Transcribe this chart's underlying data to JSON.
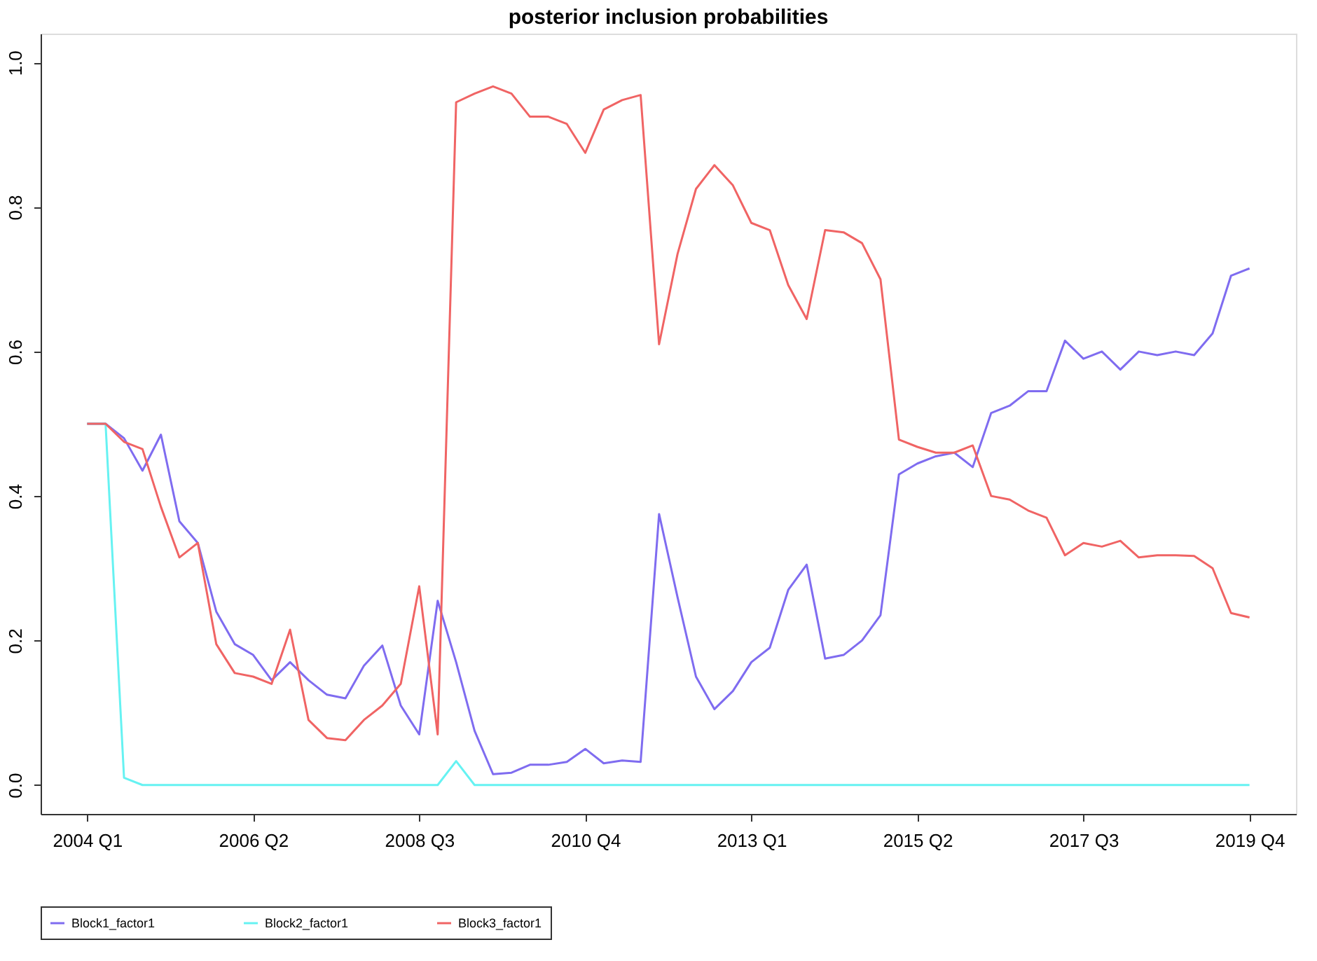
{
  "chart_data": {
    "type": "line",
    "title": "posterior inclusion probabilities",
    "categories": [
      "2004 Q1",
      null,
      null,
      null,
      null,
      null,
      null,
      null,
      null,
      "2006 Q2",
      null,
      null,
      null,
      null,
      null,
      null,
      null,
      null,
      "2008 Q3",
      null,
      null,
      null,
      null,
      null,
      null,
      null,
      null,
      "2010 Q4",
      null,
      null,
      null,
      null,
      null,
      null,
      null,
      null,
      "2013 Q1",
      null,
      null,
      null,
      null,
      null,
      null,
      null,
      null,
      "2015 Q2",
      null,
      null,
      null,
      null,
      null,
      null,
      null,
      null,
      "2017 Q3",
      null,
      null,
      null,
      null,
      null,
      null,
      null,
      null,
      "2019 Q4"
    ],
    "series": [
      {
        "name": "Block1_factor1",
        "color": "#7f6cf0",
        "values": [
          0.5,
          0.5,
          0.48,
          0.435,
          0.485,
          0.365,
          0.335,
          0.24,
          0.195,
          0.18,
          0.145,
          0.17,
          0.145,
          0.125,
          0.12,
          0.165,
          0.193,
          0.11,
          0.07,
          0.255,
          0.17,
          0.075,
          0.015,
          0.017,
          0.028,
          0.028,
          0.032,
          0.05,
          0.03,
          0.034,
          0.032,
          0.375,
          0.26,
          0.15,
          0.105,
          0.13,
          0.17,
          0.19,
          0.27,
          0.305,
          0.175,
          0.18,
          0.2,
          0.235,
          0.43,
          0.445,
          0.455,
          0.46,
          0.44,
          0.515,
          0.525,
          0.545,
          0.545,
          0.615,
          0.59,
          0.6,
          0.575,
          0.6,
          0.595,
          0.6,
          0.595,
          0.625,
          0.705,
          0.715
        ]
      },
      {
        "name": "Block2_factor1",
        "color": "#66f2f2",
        "values": [
          0.5,
          0.5,
          0.01,
          0.0,
          0.0,
          0.0,
          0.0,
          0.0,
          0.0,
          0.0,
          0.0,
          0.0,
          0.0,
          0.0,
          0.0,
          0.0,
          0.0,
          0.0,
          0.0,
          0.0,
          0.033,
          0.0,
          0.0,
          0.0,
          0.0,
          0.0,
          0.0,
          0.0,
          0.0,
          0.0,
          0.0,
          0.0,
          0.0,
          0.0,
          0.0,
          0.0,
          0.0,
          0.0,
          0.0,
          0.0,
          0.0,
          0.0,
          0.0,
          0.0,
          0.0,
          0.0,
          0.0,
          0.0,
          0.0,
          0.0,
          0.0,
          0.0,
          0.0,
          0.0,
          0.0,
          0.0,
          0.0,
          0.0,
          0.0,
          0.0,
          0.0,
          0.0,
          0.0,
          0.0
        ]
      },
      {
        "name": "Block3_factor1",
        "color": "#f06464",
        "values": [
          0.5,
          0.5,
          0.475,
          0.465,
          0.385,
          0.315,
          0.335,
          0.195,
          0.155,
          0.15,
          0.14,
          0.215,
          0.09,
          0.065,
          0.062,
          0.09,
          0.11,
          0.14,
          0.275,
          0.07,
          0.945,
          0.957,
          0.967,
          0.957,
          0.925,
          0.925,
          0.915,
          0.875,
          0.935,
          0.948,
          0.955,
          0.61,
          0.735,
          0.825,
          0.858,
          0.83,
          0.778,
          0.768,
          0.692,
          0.645,
          0.768,
          0.765,
          0.75,
          0.7,
          0.478,
          0.468,
          0.46,
          0.46,
          0.47,
          0.4,
          0.395,
          0.38,
          0.37,
          0.318,
          0.335,
          0.33,
          0.338,
          0.315,
          0.318,
          0.318,
          0.317,
          0.3,
          0.238,
          0.232
        ]
      }
    ],
    "ylim": [
      -0.04,
      1.04
    ],
    "yticks": [
      {
        "value": 0,
        "label": "0.0"
      },
      {
        "value": 0.2,
        "label": "0.2"
      },
      {
        "value": 0.4,
        "label": "0.4"
      },
      {
        "value": 0.6,
        "label": "0.6"
      },
      {
        "value": 0.8,
        "label": "0.8"
      },
      {
        "value": 1,
        "label": "1.0"
      }
    ],
    "grid": false,
    "legend": "bottom",
    "marker": "none",
    "line_style": "solid"
  }
}
